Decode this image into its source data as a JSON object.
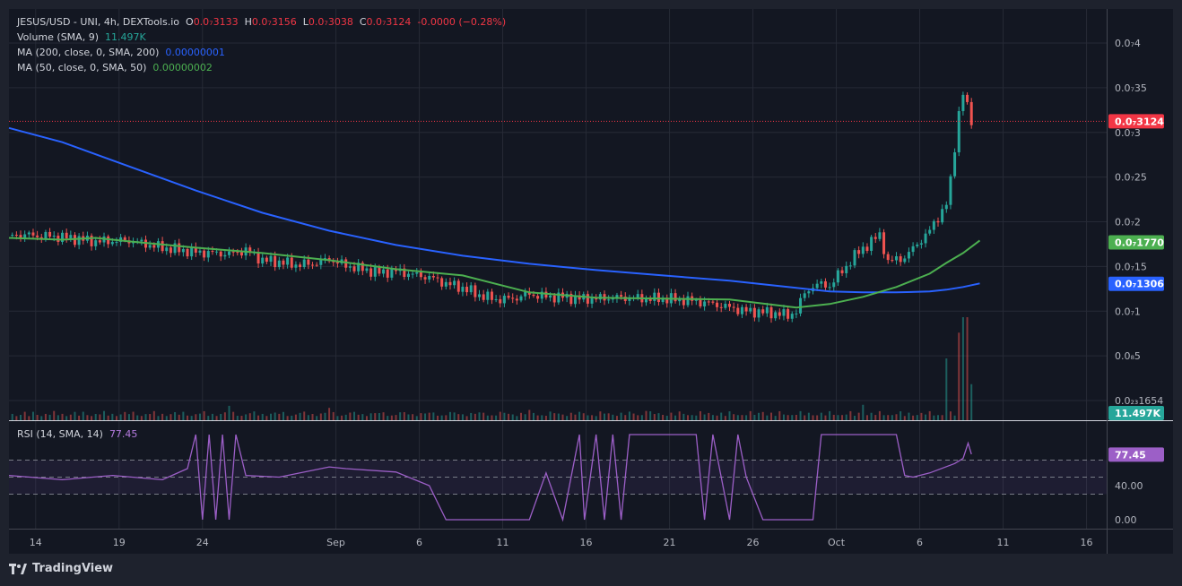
{
  "header": {
    "symbol": "JESUS/USD - UNI, 4h, DEXTools.io",
    "open_label": "O",
    "open": "0.0₇3133",
    "high_label": "H",
    "high": "0.0₇3156",
    "low_label": "L",
    "low": "0.0₇3038",
    "close_label": "C",
    "close": "0.0₇3124",
    "change": "-0.0000 (−0.28%)"
  },
  "indicators": {
    "volume_label": "Volume (SMA, 9)",
    "volume_value": "11.497K",
    "ma200_label": "MA (200, close, 0, SMA, 200)",
    "ma200_value": "0.00000001",
    "ma50_label": "MA (50, close, 0, SMA, 50)",
    "ma50_value": "0.00000002"
  },
  "rsi_panel": {
    "label": "RSI (14, SMA, 14)",
    "value": "77.45",
    "ticks": [
      {
        "v": 40,
        "label": "40.00"
      },
      {
        "v": 0,
        "label": "0.00"
      }
    ],
    "bands": {
      "upper": 70,
      "middle": 50,
      "lower": 30
    }
  },
  "branding": {
    "name": "TradingView"
  },
  "colors": {
    "background": "#1e222d",
    "pane": "#131722",
    "grid": "#262a36",
    "up": "#26a69a",
    "down": "#ef5350",
    "ma200": "#2962ff",
    "ma50": "#4caf50",
    "rsi": "#9c5fc7",
    "price_tag": "#f23645",
    "volume_tag": "#26a69a",
    "rsi_tag": "#9c5fc7"
  },
  "icons": {
    "logo": "tradingview-logo-icon"
  },
  "chart_data": {
    "type": "candlestick",
    "price_axis": {
      "ticks": [
        {
          "v": 0.4,
          "label": "0.0₇4"
        },
        {
          "v": 0.35,
          "label": "0.0₇35"
        },
        {
          "v": 0.3,
          "label": "0.0₇3"
        },
        {
          "v": 0.25,
          "label": "0.0₇25"
        },
        {
          "v": 0.2,
          "label": "0.0₇2"
        },
        {
          "v": 0.15,
          "label": "0.0₇15"
        },
        {
          "v": 0.1,
          "label": "0.0₇1"
        },
        {
          "v": 0.05,
          "label": "0.0₈5"
        },
        {
          "v": 0.0,
          "label": "0.0₂₃1654"
        }
      ],
      "unit_note": "values in units of 1e-7 USD",
      "range": [
        0.0,
        0.45
      ]
    },
    "price_tags": {
      "last": {
        "v": 0.3124,
        "label": "0.0₇3124"
      },
      "ma50": {
        "v": 0.177,
        "label": "0.0₇1770"
      },
      "ma200": {
        "v": 0.1306,
        "label": "0.0₇1306"
      },
      "volume": {
        "label": "11.497K"
      }
    },
    "time_axis": {
      "labels": [
        {
          "label": "14",
          "t": 0.4
        },
        {
          "label": "19",
          "t": 5.4
        },
        {
          "label": "24",
          "t": 10.4
        },
        {
          "label": "Sep",
          "t": 18.4
        },
        {
          "label": "6",
          "t": 23.4
        },
        {
          "label": "11",
          "t": 28.4
        },
        {
          "label": "16",
          "t": 33.4
        },
        {
          "label": "21",
          "t": 38.4
        },
        {
          "label": "26",
          "t": 43.4
        },
        {
          "label": "Oct",
          "t": 48.4
        },
        {
          "label": "6",
          "t": 53.4
        },
        {
          "label": "11",
          "t": 58.4
        },
        {
          "label": "16",
          "t": 63.4
        }
      ],
      "range_days": [
        -1.2,
        64.5
      ]
    },
    "close_series": [
      [
        0,
        0.185
      ],
      [
        2,
        0.183
      ],
      [
        4,
        0.178
      ],
      [
        6,
        0.179
      ],
      [
        8,
        0.171
      ],
      [
        10,
        0.166
      ],
      [
        12,
        0.164
      ],
      [
        13,
        0.168
      ],
      [
        14,
        0.157
      ],
      [
        15,
        0.155
      ],
      [
        16,
        0.152
      ],
      [
        17,
        0.153
      ],
      [
        18,
        0.158
      ],
      [
        19,
        0.151
      ],
      [
        20,
        0.147
      ],
      [
        21,
        0.143
      ],
      [
        22,
        0.145
      ],
      [
        23,
        0.141
      ],
      [
        24,
        0.138
      ],
      [
        25,
        0.131
      ],
      [
        26,
        0.126
      ],
      [
        27,
        0.118
      ],
      [
        28,
        0.113
      ],
      [
        29,
        0.114
      ],
      [
        30,
        0.119
      ],
      [
        31,
        0.116
      ],
      [
        32,
        0.116
      ],
      [
        33,
        0.114
      ],
      [
        34,
        0.114
      ],
      [
        35,
        0.115
      ],
      [
        36,
        0.115
      ],
      [
        37,
        0.114
      ],
      [
        38,
        0.114
      ],
      [
        39,
        0.113
      ],
      [
        40,
        0.111
      ],
      [
        41,
        0.108
      ],
      [
        42,
        0.104
      ],
      [
        43,
        0.1
      ],
      [
        44,
        0.099
      ],
      [
        45,
        0.097
      ],
      [
        45.5,
        0.095
      ],
      [
        46,
        0.1
      ],
      [
        46.5,
        0.12
      ],
      [
        47,
        0.128
      ],
      [
        47.5,
        0.13
      ],
      [
        48,
        0.128
      ],
      [
        48.5,
        0.14
      ],
      [
        49,
        0.15
      ],
      [
        49.5,
        0.162
      ],
      [
        50,
        0.17
      ],
      [
        50.5,
        0.178
      ],
      [
        51,
        0.185
      ],
      [
        51.5,
        0.155
      ],
      [
        52,
        0.158
      ],
      [
        52.5,
        0.16
      ],
      [
        53,
        0.17
      ],
      [
        53.5,
        0.18
      ],
      [
        54,
        0.19
      ],
      [
        54.5,
        0.205
      ],
      [
        55,
        0.22
      ],
      [
        55.3,
        0.25
      ],
      [
        55.6,
        0.3
      ],
      [
        55.8,
        0.33
      ],
      [
        56,
        0.345
      ],
      [
        56.2,
        0.33
      ],
      [
        56.5,
        0.312
      ]
    ],
    "ma200": [
      [
        -1.2,
        0.305
      ],
      [
        2,
        0.289
      ],
      [
        6,
        0.262
      ],
      [
        10,
        0.235
      ],
      [
        14,
        0.21
      ],
      [
        18,
        0.19
      ],
      [
        22,
        0.174
      ],
      [
        26,
        0.162
      ],
      [
        30,
        0.153
      ],
      [
        34,
        0.146
      ],
      [
        38,
        0.14
      ],
      [
        42,
        0.134
      ],
      [
        46,
        0.126
      ],
      [
        48,
        0.122
      ],
      [
        50,
        0.121
      ],
      [
        52,
        0.121
      ],
      [
        54,
        0.122
      ],
      [
        55,
        0.124
      ],
      [
        56,
        0.127
      ],
      [
        57,
        0.131
      ]
    ],
    "ma50": [
      [
        -1.2,
        0.182
      ],
      [
        2,
        0.18
      ],
      [
        4,
        0.182
      ],
      [
        6,
        0.178
      ],
      [
        10,
        0.171
      ],
      [
        14,
        0.165
      ],
      [
        18,
        0.157
      ],
      [
        22,
        0.147
      ],
      [
        26,
        0.14
      ],
      [
        30,
        0.121
      ],
      [
        34,
        0.115
      ],
      [
        38,
        0.114
      ],
      [
        42,
        0.113
      ],
      [
        46,
        0.104
      ],
      [
        47,
        0.106
      ],
      [
        48,
        0.108
      ],
      [
        50,
        0.116
      ],
      [
        52,
        0.127
      ],
      [
        54,
        0.142
      ],
      [
        55,
        0.154
      ],
      [
        56,
        0.165
      ],
      [
        57,
        0.179
      ]
    ],
    "volume": [
      [
        6,
        0.06
      ],
      [
        12,
        0.14
      ],
      [
        18,
        0.12
      ],
      [
        30,
        0.1
      ],
      [
        37,
        0.09
      ],
      [
        44,
        0.08
      ],
      [
        50,
        0.15
      ],
      [
        55,
        0.6
      ],
      [
        55.7,
        0.85
      ],
      [
        56.1,
        1.0
      ],
      [
        56.5,
        0.35
      ]
    ],
    "rsi": [
      [
        -1.2,
        52
      ],
      [
        2,
        47
      ],
      [
        5,
        52
      ],
      [
        8,
        47
      ],
      [
        9.5,
        60
      ],
      [
        10,
        100
      ],
      [
        10.4,
        0
      ],
      [
        10.8,
        100
      ],
      [
        11.2,
        0
      ],
      [
        11.6,
        100
      ],
      [
        12,
        0
      ],
      [
        12.4,
        100
      ],
      [
        13,
        52
      ],
      [
        15,
        50
      ],
      [
        18,
        62
      ],
      [
        19,
        60
      ],
      [
        22,
        56
      ],
      [
        24,
        40
      ],
      [
        25,
        0
      ],
      [
        30,
        0
      ],
      [
        31,
        55
      ],
      [
        32,
        0
      ],
      [
        33,
        100
      ],
      [
        33.3,
        0
      ],
      [
        34,
        100
      ],
      [
        34.5,
        0
      ],
      [
        35,
        100
      ],
      [
        35.5,
        0
      ],
      [
        36,
        100
      ],
      [
        40,
        100
      ],
      [
        40.5,
        0
      ],
      [
        41,
        100
      ],
      [
        42,
        0
      ],
      [
        42.5,
        100
      ],
      [
        43,
        50
      ],
      [
        44,
        0
      ],
      [
        47,
        0
      ],
      [
        47.5,
        100
      ],
      [
        52,
        100
      ],
      [
        52.5,
        52
      ],
      [
        53,
        50
      ],
      [
        54,
        55
      ],
      [
        55.5,
        66
      ],
      [
        56,
        72
      ],
      [
        56.3,
        90
      ],
      [
        56.5,
        77
      ]
    ],
    "legend": "top-left"
  }
}
